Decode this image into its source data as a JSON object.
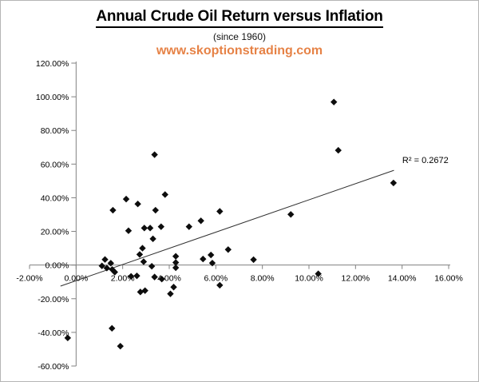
{
  "header": {
    "title": "Annual Crude Oil Return versus Inflation",
    "subtitle": "(since 1960)",
    "website": "www.skoptionstrading.com"
  },
  "colors": {
    "website_orange": "#E68246",
    "axis_gray": "#808080",
    "marker_black": "#0D0D0D",
    "trendline_black": "#303030",
    "text_black": "#000000"
  },
  "chart_data": {
    "type": "scatter",
    "title": "Annual Crude Oil Return versus Inflation",
    "subtitle": "(since 1960)",
    "watermark": "www.skoptionstrading.com",
    "xlabel": "",
    "ylabel": "",
    "xlim": [
      -2,
      16
    ],
    "ylim": [
      -60,
      120
    ],
    "grid": false,
    "legend": false,
    "marker": "diamond",
    "x_ticks": [
      {
        "v": -2,
        "label": "-2.00%"
      },
      {
        "v": 0,
        "label": "0.00%"
      },
      {
        "v": 2,
        "label": "2.00%"
      },
      {
        "v": 4,
        "label": "4.00%"
      },
      {
        "v": 6,
        "label": "6.00%"
      },
      {
        "v": 8,
        "label": "8.00%"
      },
      {
        "v": 10,
        "label": "10.00%"
      },
      {
        "v": 12,
        "label": "12.00%"
      },
      {
        "v": 14,
        "label": "14.00%"
      },
      {
        "v": 16,
        "label": "16.00%"
      }
    ],
    "y_ticks": [
      {
        "v": 120,
        "label": "120.00%"
      },
      {
        "v": 100,
        "label": "100.00%"
      },
      {
        "v": 80,
        "label": "80.00%"
      },
      {
        "v": 60,
        "label": "60.00%"
      },
      {
        "v": 40,
        "label": "40.00%"
      },
      {
        "v": 20,
        "label": "20.00%"
      },
      {
        "v": 0,
        "label": "0.00%"
      },
      {
        "v": -20,
        "label": "-20.00%"
      },
      {
        "v": -40,
        "label": "-40.00%"
      },
      {
        "v": -60,
        "label": "-60.00%"
      }
    ],
    "points": [
      [
        -0.36,
        -43.3
      ],
      [
        1.11,
        -0.5
      ],
      [
        1.24,
        3.3
      ],
      [
        1.32,
        -1.8
      ],
      [
        1.49,
        1.1
      ],
      [
        1.54,
        -37.6
      ],
      [
        1.55,
        -2.6
      ],
      [
        1.58,
        32.6
      ],
      [
        1.66,
        -4.2
      ],
      [
        1.9,
        -48.2
      ],
      [
        2.15,
        39.2
      ],
      [
        2.25,
        20.4
      ],
      [
        2.36,
        -6.7
      ],
      [
        2.61,
        -6.4
      ],
      [
        2.65,
        36.3
      ],
      [
        2.73,
        6.3
      ],
      [
        2.76,
        -16.0
      ],
      [
        2.85,
        10.0
      ],
      [
        2.9,
        2.0
      ],
      [
        2.93,
        22.0
      ],
      [
        2.96,
        -15.2
      ],
      [
        3.18,
        22.0
      ],
      [
        3.25,
        -0.7
      ],
      [
        3.3,
        15.6
      ],
      [
        3.37,
        65.6
      ],
      [
        3.37,
        -7.1
      ],
      [
        3.41,
        32.6
      ],
      [
        3.65,
        22.8
      ],
      [
        3.68,
        -8.3
      ],
      [
        3.82,
        41.9
      ],
      [
        4.05,
        -17.1
      ],
      [
        4.19,
        -13.1
      ],
      [
        4.28,
        5.2
      ],
      [
        4.28,
        1.5
      ],
      [
        4.28,
        -1.6
      ],
      [
        4.85,
        22.8
      ],
      [
        5.36,
        26.3
      ],
      [
        5.45,
        3.6
      ],
      [
        5.79,
        6.0
      ],
      [
        5.85,
        1.2
      ],
      [
        6.17,
        31.9
      ],
      [
        6.17,
        -12.0
      ],
      [
        6.53,
        9.2
      ],
      [
        7.62,
        3.2
      ],
      [
        9.22,
        30.1
      ],
      [
        10.4,
        -5.2
      ],
      [
        11.07,
        96.9
      ],
      [
        11.26,
        68.2
      ],
      [
        13.63,
        48.8
      ]
    ],
    "trendline": {
      "type": "linear",
      "x1": -0.67,
      "y1": -12.5,
      "x2": 13.65,
      "y2": 56.3
    },
    "annotation": {
      "text": "R² = 0.2672",
      "x": 15.0,
      "y": 62.5
    }
  }
}
